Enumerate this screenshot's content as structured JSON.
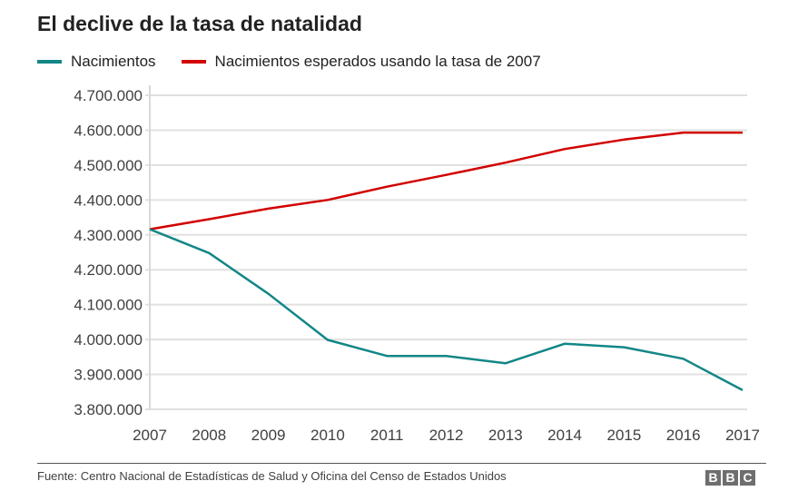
{
  "chart_data": {
    "type": "line",
    "title": "El declive de la tasa de natalidad",
    "xlabel": "",
    "ylabel": "",
    "x": [
      "2007",
      "2008",
      "2009",
      "2010",
      "2011",
      "2012",
      "2013",
      "2014",
      "2015",
      "2016",
      "2017"
    ],
    "series": [
      {
        "name": "Nacimientos",
        "color": "#138686",
        "values": [
          4316000,
          4248000,
          4131000,
          3999000,
          3953000,
          3953000,
          3932000,
          3988000,
          3978000,
          3945000,
          3855000
        ]
      },
      {
        "name": "Nacimientos esperados usando la tasa de 2007",
        "color": "#d20000",
        "values": [
          4316000,
          4345000,
          4375000,
          4400000,
          4438000,
          4472000,
          4507000,
          4546000,
          4573000,
          4593000,
          4593000
        ]
      }
    ],
    "ylim": [
      3800000,
      4700000
    ],
    "yticks": [
      4700000,
      4600000,
      4500000,
      4400000,
      4300000,
      4200000,
      4100000,
      4000000,
      3900000,
      3800000
    ],
    "ytick_labels": [
      "4.700.000",
      "4.600.000",
      "4.500.000",
      "4.400.000",
      "4.300.000",
      "4.200.000",
      "4.100.000",
      "4.000.000",
      "3.900.000",
      "3.800.000"
    ],
    "grid": true,
    "legend_position": "top-left"
  },
  "footer": {
    "source": "Fuente: Centro Nacional de Estadísticas de Salud y Oficina del Censo de Estados Unidos",
    "logo_letters": [
      "B",
      "B",
      "C"
    ]
  }
}
